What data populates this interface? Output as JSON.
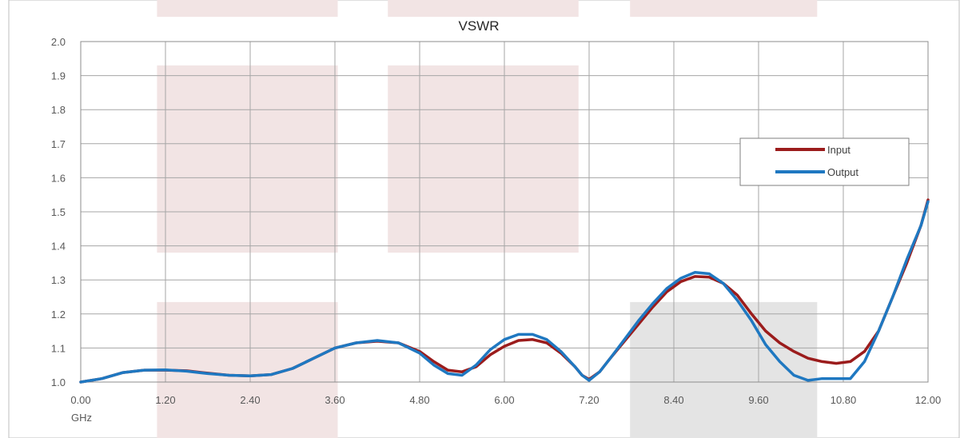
{
  "chart_data": {
    "type": "line",
    "title": "VSWR",
    "xlabel": "GHz",
    "ylabel": "",
    "xlim": [
      0,
      12
    ],
    "ylim": [
      1.0,
      2.0
    ],
    "x_ticks": [
      "0.00",
      "1.20",
      "2.40",
      "3.60",
      "4.80",
      "6.00",
      "7.20",
      "8.40",
      "9.60",
      "10.80",
      "12.00"
    ],
    "y_ticks": [
      "1.0",
      "1.1",
      "1.2",
      "1.3",
      "1.4",
      "1.5",
      "1.6",
      "1.7",
      "1.8",
      "1.9",
      "2.0"
    ],
    "grid": true,
    "legend_position": "right",
    "background_bands": [
      {
        "x": [
          1.08,
          3.64
        ],
        "y": [
          1.38,
          1.93
        ],
        "color": "#f2e4e4"
      },
      {
        "x": [
          4.35,
          7.05
        ],
        "y": [
          1.38,
          1.93
        ],
        "color": "#f2e4e4"
      },
      {
        "x": [
          1.08,
          3.64
        ],
        "y": [
          0.82,
          1.235
        ],
        "color": "#f2e4e4"
      },
      {
        "x": [
          7.78,
          10.43
        ],
        "y": [
          0.82,
          1.235
        ],
        "color": "#e4e4e4"
      }
    ],
    "series": [
      {
        "name": "Input",
        "color": "#9b1c1c",
        "x": [
          0.0,
          0.3,
          0.6,
          0.9,
          1.2,
          1.5,
          1.8,
          2.1,
          2.4,
          2.7,
          3.0,
          3.3,
          3.6,
          3.9,
          4.2,
          4.5,
          4.8,
          5.0,
          5.2,
          5.4,
          5.6,
          5.8,
          6.0,
          6.2,
          6.4,
          6.6,
          6.8,
          7.0,
          7.1,
          7.2,
          7.35,
          7.5,
          7.7,
          7.9,
          8.1,
          8.3,
          8.5,
          8.7,
          8.9,
          9.1,
          9.3,
          9.5,
          9.7,
          9.9,
          10.1,
          10.3,
          10.5,
          10.7,
          10.9,
          11.1,
          11.3,
          11.5,
          11.7,
          11.9,
          12.0
        ],
        "values": [
          1.0,
          1.01,
          1.028,
          1.035,
          1.035,
          1.033,
          1.026,
          1.02,
          1.018,
          1.022,
          1.04,
          1.07,
          1.1,
          1.115,
          1.12,
          1.115,
          1.09,
          1.06,
          1.035,
          1.03,
          1.045,
          1.08,
          1.105,
          1.122,
          1.125,
          1.115,
          1.085,
          1.045,
          1.02,
          1.008,
          1.03,
          1.07,
          1.12,
          1.17,
          1.22,
          1.265,
          1.295,
          1.31,
          1.308,
          1.29,
          1.255,
          1.2,
          1.15,
          1.115,
          1.09,
          1.07,
          1.06,
          1.055,
          1.06,
          1.09,
          1.15,
          1.25,
          1.35,
          1.46,
          1.535
        ]
      },
      {
        "name": "Output",
        "color": "#1f78c1",
        "x": [
          0.0,
          0.3,
          0.6,
          0.9,
          1.2,
          1.5,
          1.8,
          2.1,
          2.4,
          2.7,
          3.0,
          3.3,
          3.6,
          3.9,
          4.2,
          4.5,
          4.8,
          5.0,
          5.2,
          5.4,
          5.6,
          5.8,
          6.0,
          6.2,
          6.4,
          6.6,
          6.8,
          7.0,
          7.1,
          7.2,
          7.35,
          7.5,
          7.7,
          7.9,
          8.1,
          8.3,
          8.5,
          8.7,
          8.9,
          9.1,
          9.3,
          9.5,
          9.7,
          9.9,
          10.1,
          10.3,
          10.5,
          10.7,
          10.9,
          11.1,
          11.3,
          11.5,
          11.7,
          11.9,
          12.0
        ],
        "values": [
          1.0,
          1.01,
          1.028,
          1.035,
          1.036,
          1.032,
          1.025,
          1.02,
          1.018,
          1.022,
          1.04,
          1.07,
          1.1,
          1.115,
          1.122,
          1.115,
          1.085,
          1.05,
          1.025,
          1.02,
          1.05,
          1.095,
          1.125,
          1.14,
          1.14,
          1.125,
          1.09,
          1.045,
          1.02,
          1.005,
          1.03,
          1.07,
          1.125,
          1.18,
          1.23,
          1.275,
          1.305,
          1.322,
          1.318,
          1.29,
          1.24,
          1.18,
          1.11,
          1.06,
          1.02,
          1.005,
          1.01,
          1.01,
          1.01,
          1.06,
          1.15,
          1.25,
          1.36,
          1.46,
          1.53
        ]
      }
    ]
  }
}
